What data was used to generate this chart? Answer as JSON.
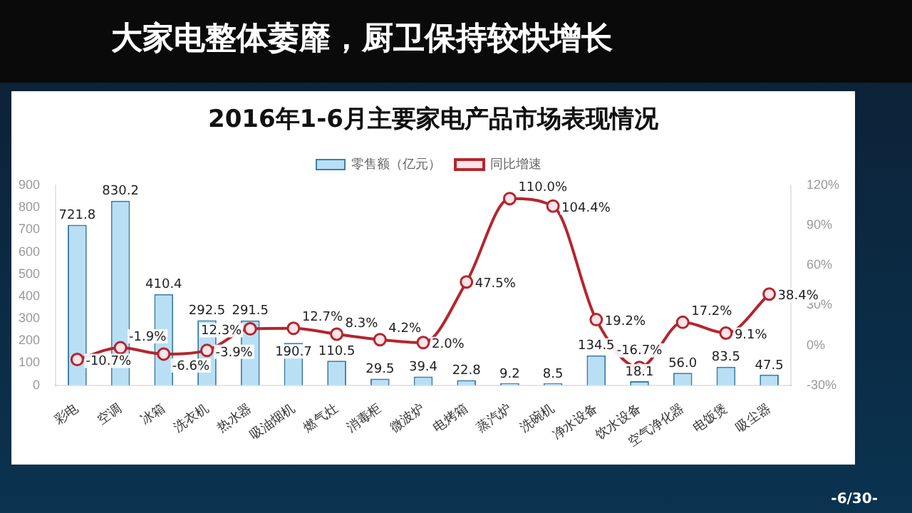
{
  "chart_data": {
    "type": "bar",
    "title": "大家电整体萎靡，厨卫保持较快增长",
    "subtitle": "2016年1-6月主要家电产品市场表现情况",
    "categories": [
      "彩电",
      "空调",
      "冰箱",
      "洗衣机",
      "热水器",
      "吸油烟机",
      "燃气灶",
      "消毒柜",
      "微波炉",
      "电烤箱",
      "蒸汽炉",
      "洗碗机",
      "净水设备",
      "饮水设备",
      "空气净化器",
      "电饭煲",
      "吸尘器"
    ],
    "series": [
      {
        "name": "零售额（亿元）",
        "color": "#b9dff4",
        "values": [
          721.8,
          830.2,
          410.4,
          292.5,
          291.5,
          190.7,
          110.5,
          29.5,
          39.4,
          22.8,
          9.2,
          8.5,
          134.5,
          18.1,
          56.0,
          83.5,
          47.5
        ],
        "value_labels": [
          "721.8",
          "830.2",
          "410.4",
          "292.5",
          "291.5",
          "190.7",
          "110.5",
          "29.5",
          "39.4",
          "22.8",
          "9.2",
          "8.5",
          "134.5",
          "18.1",
          "56.0",
          "83.5",
          "47.5"
        ]
      },
      {
        "name": "同比增速",
        "type": "line",
        "axis": "y2",
        "color": "#b5252c",
        "values": [
          -10.7,
          -1.9,
          -6.6,
          -3.9,
          12.3,
          12.7,
          8.3,
          4.2,
          2.0,
          47.5,
          110.0,
          104.4,
          19.2,
          -16.7,
          17.2,
          9.1,
          38.4
        ],
        "value_labels": [
          "-10.7%",
          "-1.9%",
          "-6.6%",
          "-3.9%",
          "12.3%",
          "12.7%",
          "8.3%",
          "4.2%",
          "2.0%",
          "47.5%",
          "110.0%",
          "104.4%",
          "19.2%",
          "-16.7%",
          "17.2%",
          "9.1%",
          "38.4%"
        ]
      }
    ],
    "ylim": [
      0,
      900
    ],
    "yticks": [
      0,
      100,
      200,
      300,
      400,
      500,
      600,
      700,
      800,
      900
    ],
    "y2lim": [
      -30,
      120
    ],
    "y2ticks": [
      {
        "value": -30,
        "label": "-30%"
      },
      {
        "value": 0,
        "label": "0%"
      },
      {
        "value": 30,
        "label": "30%"
      },
      {
        "value": 60,
        "label": "60%"
      },
      {
        "value": 90,
        "label": "90%"
      },
      {
        "value": 120,
        "label": "120%"
      }
    ],
    "legend": "top",
    "marker": "circle",
    "grid": false,
    "annotations": [
      "-6/30-"
    ]
  }
}
